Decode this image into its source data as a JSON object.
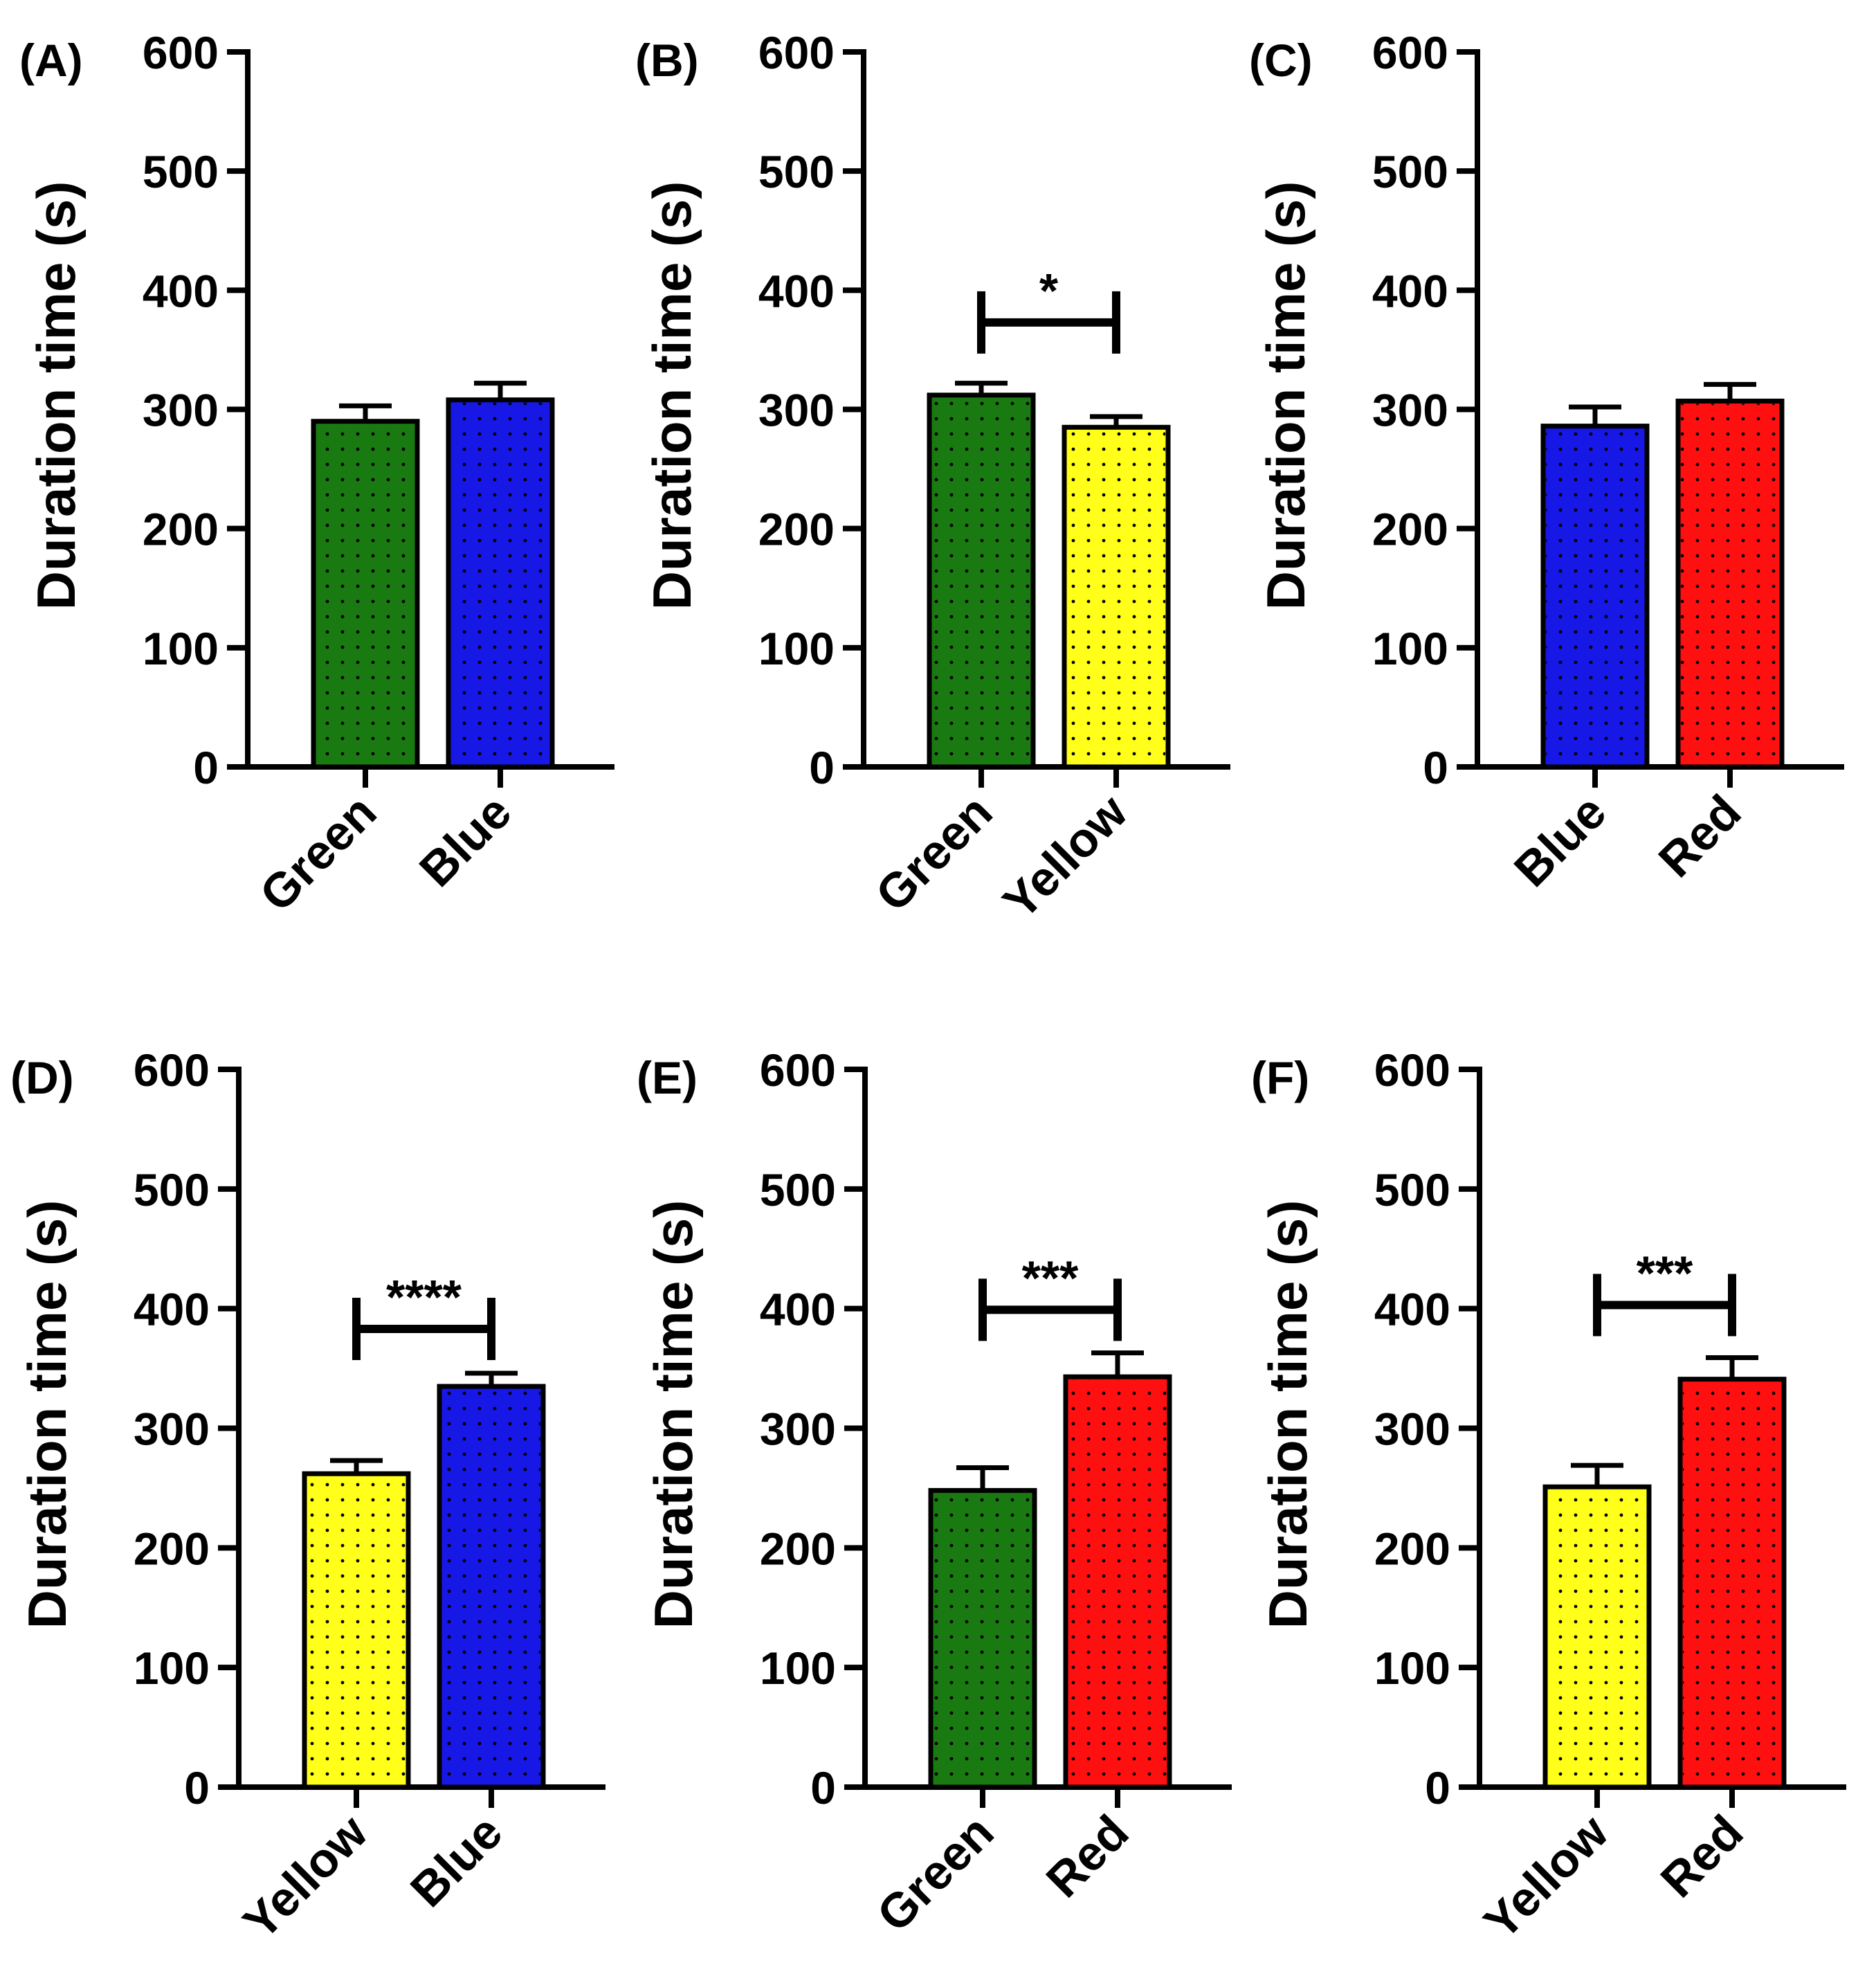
{
  "figure": {
    "panels_count": 6
  },
  "colors": {
    "Green": "#1a7a12",
    "Blue": "#1717e6",
    "Yellow": "#ffff1a",
    "Red": "#ff1010",
    "axis": "#000000",
    "dots": "#000000"
  },
  "chart_data": [
    {
      "type": "bar",
      "panel_label": "(A)",
      "categories": [
        "Green",
        "Blue"
      ],
      "values": [
        290,
        308
      ],
      "error": [
        13,
        14
      ],
      "ylabel": "Duration time (s)",
      "xlabel": "",
      "ylim": [
        0,
        600
      ],
      "yticks": [
        0,
        100,
        200,
        300,
        400,
        500,
        600
      ],
      "significance": null,
      "grid": false
    },
    {
      "type": "bar",
      "panel_label": "(B)",
      "categories": [
        "Green",
        "Yellow"
      ],
      "values": [
        312,
        285
      ],
      "error": [
        10,
        9
      ],
      "ylabel": "Duration time (s)",
      "xlabel": "",
      "ylim": [
        0,
        600
      ],
      "yticks": [
        0,
        100,
        200,
        300,
        400,
        500,
        600
      ],
      "significance": {
        "text": "*",
        "y": 373
      },
      "grid": false
    },
    {
      "type": "bar",
      "panel_label": "(C)",
      "categories": [
        "Blue",
        "Red"
      ],
      "values": [
        286,
        307
      ],
      "error": [
        16,
        14
      ],
      "ylabel": "Duration time (s)",
      "xlabel": "",
      "ylim": [
        0,
        600
      ],
      "yticks": [
        0,
        100,
        200,
        300,
        400,
        500,
        600
      ],
      "significance": null,
      "grid": false
    },
    {
      "type": "bar",
      "panel_label": "(D)",
      "categories": [
        "Yellow",
        "Blue"
      ],
      "values": [
        262,
        335
      ],
      "error": [
        11,
        11
      ],
      "ylabel": "Duration time (s)",
      "xlabel": "",
      "ylim": [
        0,
        600
      ],
      "yticks": [
        0,
        100,
        200,
        300,
        400,
        500,
        600
      ],
      "significance": {
        "text": "****",
        "y": 383
      },
      "grid": false
    },
    {
      "type": "bar",
      "panel_label": "(E)",
      "categories": [
        "Green",
        "Red"
      ],
      "values": [
        248,
        343
      ],
      "error": [
        19,
        20
      ],
      "ylabel": "Duration time (s)",
      "xlabel": "",
      "ylim": [
        0,
        600
      ],
      "yticks": [
        0,
        100,
        200,
        300,
        400,
        500,
        600
      ],
      "significance": {
        "text": "***",
        "y": 399
      },
      "grid": false
    },
    {
      "type": "bar",
      "panel_label": "(F)",
      "categories": [
        "Yellow",
        "Red"
      ],
      "values": [
        251,
        341
      ],
      "error": [
        18,
        18
      ],
      "ylabel": "Duration time (s)",
      "xlabel": "",
      "ylim": [
        0,
        600
      ],
      "yticks": [
        0,
        100,
        200,
        300,
        400,
        500,
        600
      ],
      "significance": {
        "text": "***",
        "y": 403
      },
      "grid": false
    }
  ]
}
